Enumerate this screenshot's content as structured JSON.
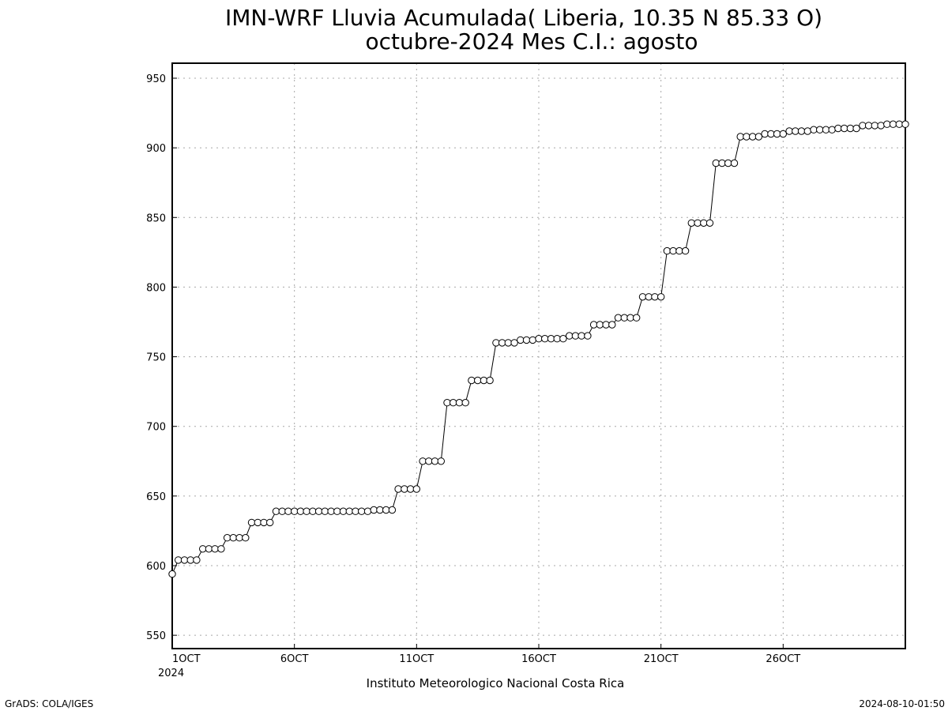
{
  "chart_data": {
    "type": "line",
    "title": "IMN-WRF  Lluvia Acumulada( Liberia, 10.35  N 85.33  O)",
    "subtitle": "octubre-2024 Mes C.I.: agosto",
    "xlabel": "Instituto Meteorologico Nacional Costa Rica",
    "ylabel": "",
    "x_start": "2024-10-01 00:00",
    "x_step_hours": 6,
    "x_ticks": [
      {
        "day": 1,
        "label": "1OCT",
        "sublabel": "2024"
      },
      {
        "day": 6,
        "label": "6OCT",
        "sublabel": ""
      },
      {
        "day": 11,
        "label": "11OCT",
        "sublabel": ""
      },
      {
        "day": 16,
        "label": "16OCT",
        "sublabel": ""
      },
      {
        "day": 21,
        "label": "21OCT",
        "sublabel": ""
      },
      {
        "day": 26,
        "label": "26OCT",
        "sublabel": ""
      }
    ],
    "x_range_days": [
      1,
      31
    ],
    "ylim": [
      540,
      960
    ],
    "yticks": [
      550,
      600,
      650,
      700,
      750,
      800,
      850,
      900,
      950
    ],
    "grid": true,
    "marker": "open-circle",
    "series": [
      {
        "name": "",
        "values": [
          594,
          604,
          604,
          604,
          604,
          612,
          612,
          612,
          612,
          620,
          620,
          620,
          620,
          631,
          631,
          631,
          631,
          639,
          639,
          639,
          639,
          639,
          639,
          639,
          639,
          639,
          639,
          639,
          639,
          639,
          639,
          639,
          639,
          640,
          640,
          640,
          640,
          655,
          655,
          655,
          655,
          675,
          675,
          675,
          675,
          717,
          717,
          717,
          717,
          733,
          733,
          733,
          733,
          760,
          760,
          760,
          760,
          762,
          762,
          762,
          763,
          763,
          763,
          763,
          763,
          765,
          765,
          765,
          765,
          773,
          773,
          773,
          773,
          778,
          778,
          778,
          778,
          793,
          793,
          793,
          793,
          826,
          826,
          826,
          826,
          846,
          846,
          846,
          846,
          889,
          889,
          889,
          889,
          908,
          908,
          908,
          908,
          910,
          910,
          910,
          910,
          912,
          912,
          912,
          912,
          913,
          913,
          913,
          913,
          914,
          914,
          914,
          914,
          916,
          916,
          916,
          916,
          917,
          917,
          917,
          917
        ]
      }
    ]
  },
  "footer": {
    "left": "GrADS: COLA/IGES",
    "right": "2024-08-10-01:50"
  }
}
